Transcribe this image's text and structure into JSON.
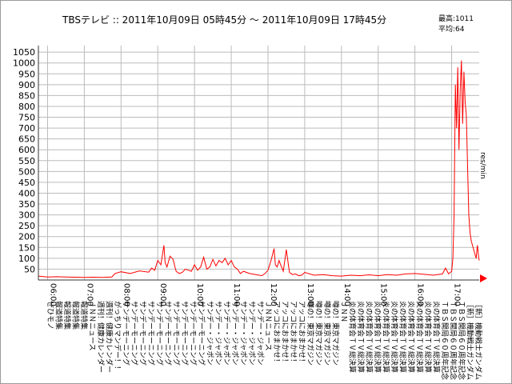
{
  "title": "TBSテレビ :: 2011年10月09日 05時45分 ～ 2011年10月09日 17時45分",
  "stats": {
    "max": "最高:1011",
    "avg": "平均:64"
  },
  "colors": {
    "line": "#ff0000",
    "grid": "#bbbbbb",
    "axis": "#333333",
    "marker": "#ff0000"
  },
  "chart_data": {
    "type": "line",
    "title": "TBSテレビ :: 2011年10月09日 05時45分 ～ 2011年10月09日 17時45分",
    "xlabel": "",
    "ylabel": "res/min",
    "ylim": [
      0,
      1080
    ],
    "xlim": [
      "05:45",
      "17:45"
    ],
    "grid": true,
    "yticks": [
      50,
      100,
      150,
      200,
      250,
      300,
      350,
      400,
      450,
      500,
      550,
      600,
      650,
      700,
      750,
      800,
      850,
      900,
      950,
      1000,
      1050
    ],
    "xticks": [
      "06:00",
      "07:00",
      "08:00",
      "09:00",
      "10:00",
      "11:00",
      "12:00",
      "13:00",
      "14:00",
      "15:00",
      "16:00",
      "17:00"
    ],
    "programs": [
      "ぜひモノ",
      "報道特集",
      "報道特集",
      "報道特集",
      "報道特集",
      "ＪＮＮニュース",
      "週刊！健康カレンダー",
      "週刊！健康カレンダー",
      "がっちりマンデー！！",
      "サンデーモーニング",
      "サンデーモーニング",
      "サンデーモーニング",
      "サンデーモーニング",
      "サンデーモーニング",
      "サンデーモーニング",
      "サンデーモーニング",
      "サンデーモーニング",
      "サンデーモーニング",
      "サンデーモーニング",
      "サンデー・ジャポン",
      "サンデー・ジャポン",
      "サンデー・ジャポン",
      "サンデー・ジャポン",
      "サンデー・ジャポン",
      "サンデー・ジャポン",
      "サンデー・ジャポン",
      "ＪＮＮニュース",
      "アッコにおまかせ！",
      "アッコにおまかせ！",
      "アッコにおまかせ！",
      "アッコにおまかせ！",
      "噂の！東京マガジン",
      "噂の！東京マガジン",
      "噂の！東京マガジン",
      "噂の！東京マガジン",
      "ＪＮＮ",
      "炎の体育会ＴＶ総決算",
      "炎の体育会ＴＶ総決算",
      "炎の体育会ＴＶ総決算",
      "炎の体育会ＴＶ総決算",
      "炎の体育会ＴＶ総決算",
      "炎の体育会ＴＶ総決算",
      "炎の体育会ＴＶ総決算",
      "炎の体育会ＴＶ総決算",
      "炎の体育会ＴＶ総決算",
      "炎の体育会ＴＶ総決算",
      "炎の体育会ＴＶ総決算",
      "ＴＢＳ開局６０周年記念",
      "ＴＢＳ開局６０周年記念",
      "ＴＢＳ開局６０周年記念",
      "［新］機動戦士ガンダム",
      "［新］機動戦士ガンダム"
    ],
    "series": [
      {
        "x": [
          "05:45",
          "06:00",
          "06:15",
          "06:30",
          "06:45",
          "07:00",
          "07:15",
          "07:30",
          "07:45",
          "07:50",
          "08:00",
          "08:15",
          "08:30",
          "08:45",
          "08:50",
          "08:55",
          "09:00",
          "09:05",
          "09:10",
          "09:12",
          "09:15",
          "09:20",
          "09:25",
          "09:28",
          "09:30",
          "09:35",
          "09:40",
          "09:45",
          "09:50",
          "09:55",
          "10:00",
          "10:05",
          "10:10",
          "10:15",
          "10:20",
          "10:25",
          "10:30",
          "10:35",
          "10:40",
          "10:45",
          "10:50",
          "10:55",
          "11:00",
          "11:05",
          "11:10",
          "11:15",
          "11:20",
          "11:25",
          "11:30",
          "11:40",
          "11:50",
          "11:55",
          "12:00",
          "12:05",
          "12:10",
          "12:12",
          "12:15",
          "12:18",
          "12:20",
          "12:25",
          "12:30",
          "12:35",
          "12:40",
          "12:45",
          "12:50",
          "12:55",
          "13:00",
          "13:15",
          "13:30",
          "13:45",
          "14:00",
          "14:15",
          "14:30",
          "14:45",
          "15:00",
          "15:15",
          "15:30",
          "15:45",
          "16:00",
          "16:15",
          "16:30",
          "16:45",
          "16:50",
          "16:55",
          "17:00",
          "17:02",
          "17:04",
          "17:06",
          "17:08",
          "17:10",
          "17:12",
          "17:14",
          "17:16",
          "17:18",
          "17:20",
          "17:22",
          "17:24",
          "17:26",
          "17:28",
          "17:30",
          "17:32",
          "17:34",
          "17:36",
          "17:38",
          "17:40",
          "17:42",
          "17:44",
          "17:45"
        ],
        "y": [
          18,
          14,
          15,
          14,
          13,
          12,
          13,
          12,
          14,
          30,
          38,
          30,
          42,
          36,
          55,
          45,
          90,
          70,
          160,
          80,
          60,
          110,
          95,
          60,
          40,
          30,
          35,
          50,
          45,
          40,
          70,
          45,
          60,
          105,
          50,
          60,
          95,
          65,
          90,
          80,
          100,
          70,
          90,
          60,
          50,
          30,
          40,
          35,
          30,
          25,
          20,
          30,
          45,
          90,
          145,
          70,
          60,
          90,
          75,
          40,
          140,
          35,
          25,
          28,
          20,
          22,
          35,
          22,
          25,
          20,
          18,
          22,
          20,
          24,
          20,
          25,
          22,
          28,
          30,
          26,
          22,
          28,
          55,
          28,
          40,
          100,
          300,
          900,
          700,
          980,
          600,
          880,
          1011,
          720,
          960,
          820,
          760,
          520,
          300,
          220,
          180,
          160,
          140,
          120,
          100,
          160,
          110,
          90
        ]
      }
    ]
  }
}
